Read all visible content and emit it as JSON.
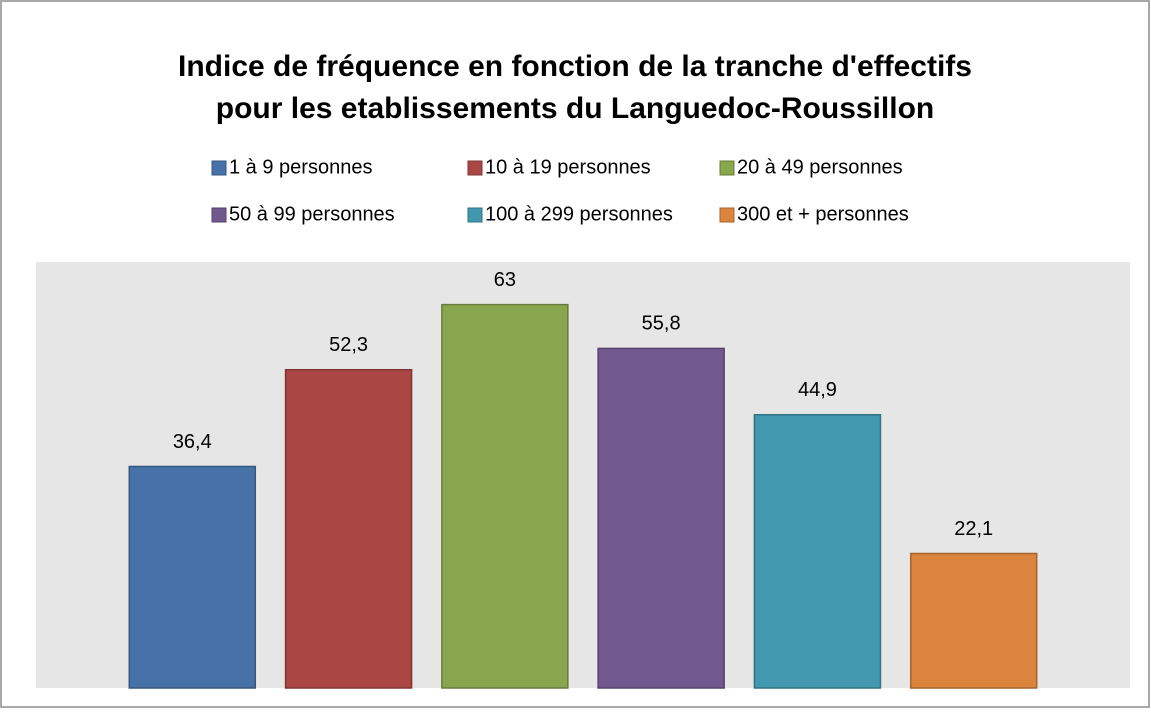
{
  "chart_data": {
    "type": "bar",
    "title": [
      "Indice de fréquence en fonction de la tranche d'effectifs",
      "pour les etablissements du Languedoc-Roussillon"
    ],
    "series": [
      {
        "name": "1 à 9 personnes",
        "color": "#4672a8",
        "values": [
          36.4
        ],
        "value_labels": [
          "36,4"
        ]
      },
      {
        "name": "10 à 19 personnes",
        "color": "#aa4644",
        "values": [
          52.3
        ],
        "value_labels": [
          "52,3"
        ]
      },
      {
        "name": "20 à 49 personnes",
        "color": "#89a54e",
        "values": [
          63
        ],
        "value_labels": [
          "63"
        ]
      },
      {
        "name": "50 à 99 personnes",
        "color": "#71588f",
        "values": [
          55.8
        ],
        "value_labels": [
          "55,8"
        ]
      },
      {
        "name": "100 à 299 personnes",
        "color": "#4198af",
        "values": [
          44.9
        ],
        "value_labels": [
          "44,9"
        ]
      },
      {
        "name": "300 et + personnes",
        "color": "#db843d",
        "values": [
          22.1
        ],
        "value_labels": [
          "22,1"
        ]
      }
    ],
    "ylim": [
      0,
      70
    ],
    "legend": "top"
  }
}
